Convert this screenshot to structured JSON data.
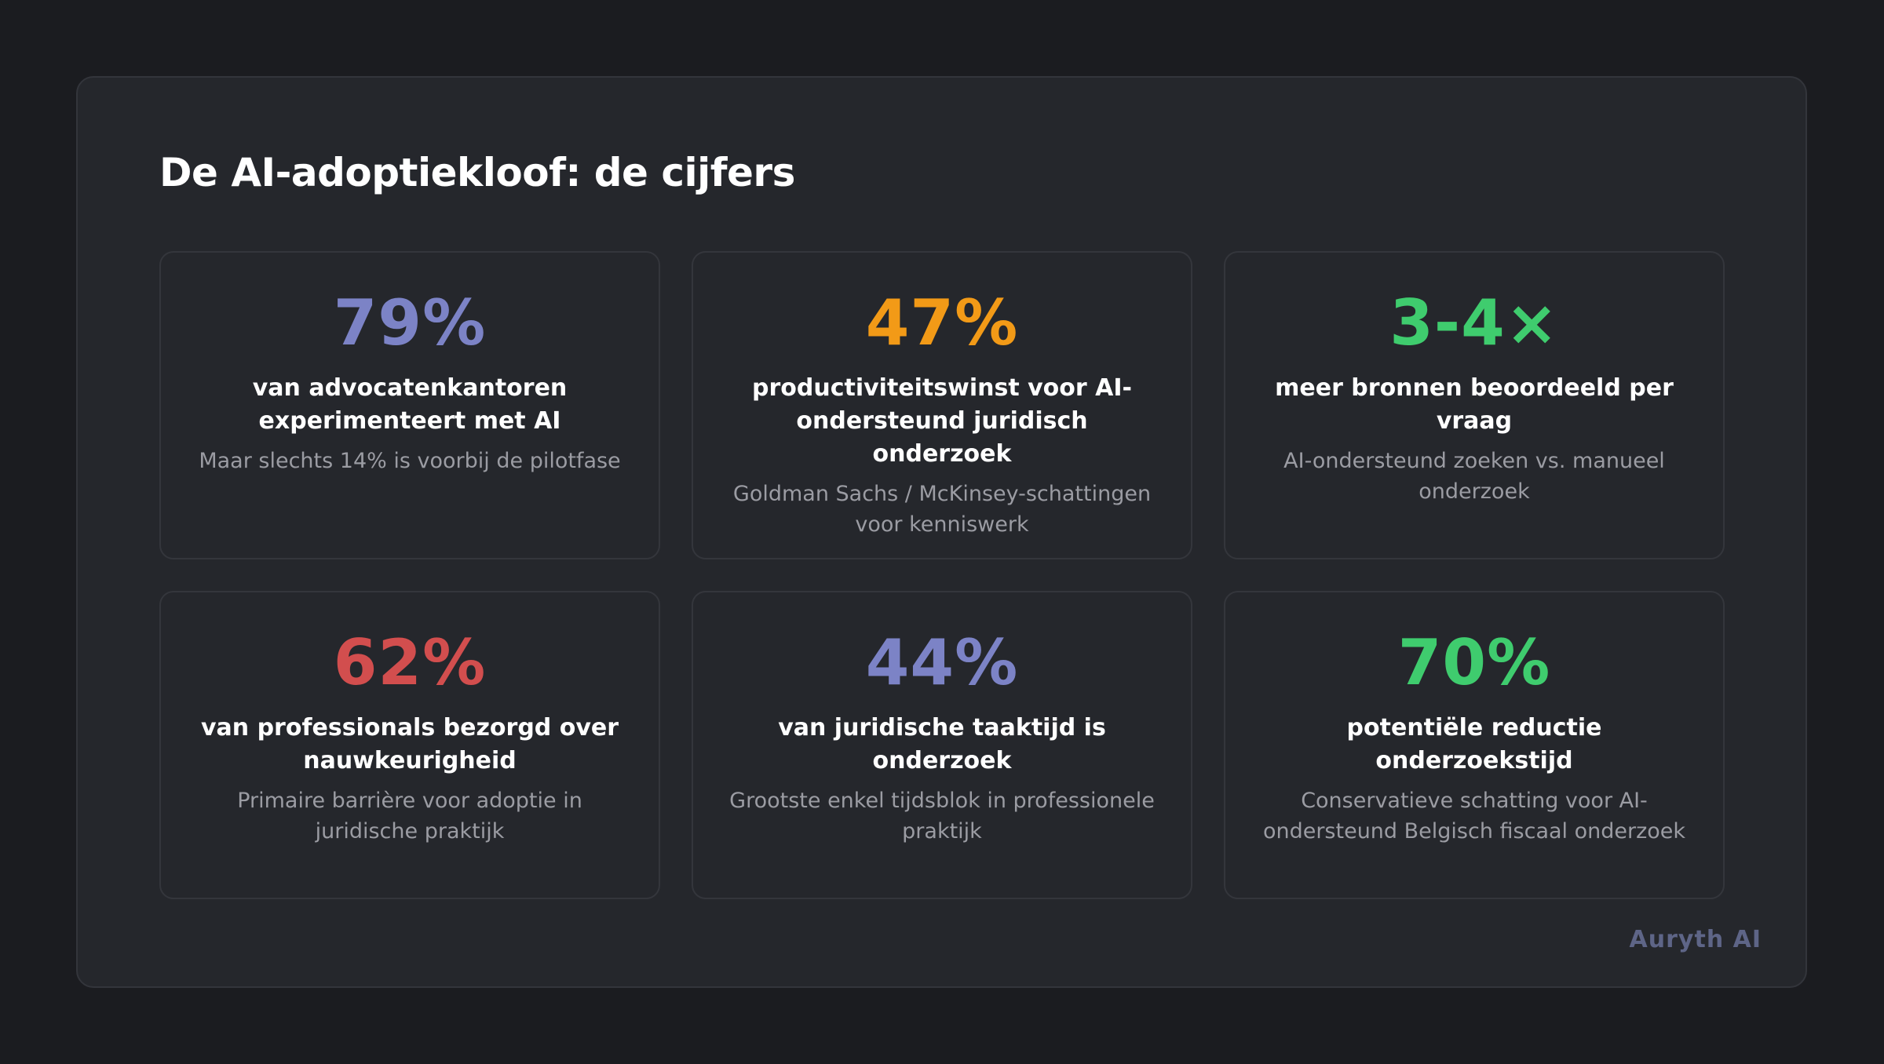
{
  "title": "De AI-adoptiekloof: de cijfers",
  "brand": "Auryth AI",
  "cards": [
    {
      "stat": "79%",
      "label": "van advocatenkantoren experimenteert met AI",
      "note": "Maar slechts 14% is voorbij de pilotfase",
      "color": "#7c83c6"
    },
    {
      "stat": "47%",
      "label": "productiviteitswinst voor AI-ondersteund juridisch onderzoek",
      "note": "Goldman Sachs / McKinsey-schattingen voor kenniswerk",
      "color": "#f29a17"
    },
    {
      "stat": "3-4×",
      "label": "meer bronnen beoordeeld per vraag",
      "note": "AI-ondersteund zoeken vs. manueel onderzoek",
      "color": "#3fcc6e"
    },
    {
      "stat": "62%",
      "label": "van professionals bezorgd over nauwkeurigheid",
      "note": "Primaire barrière voor adoptie in juridische praktijk",
      "color": "#d24e4e"
    },
    {
      "stat": "44%",
      "label": "van juridische taaktijd is onderzoek",
      "note": "Grootste enkel tijdsblok in professionele praktijk",
      "color": "#7c83c6"
    },
    {
      "stat": "70%",
      "label": "potentiële reductie onderzoekstijd",
      "note": "Conservatieve schatting voor AI-ondersteund Belgisch fiscaal onderzoek",
      "color": "#3fcc6e"
    }
  ]
}
